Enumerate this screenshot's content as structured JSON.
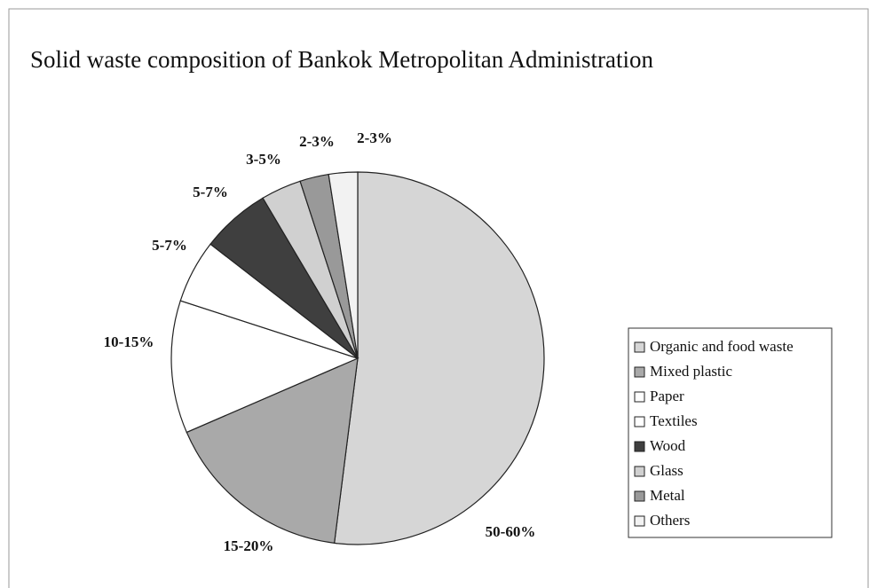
{
  "chart_data": {
    "type": "pie",
    "title": "Solid waste composition of Bankok Metropolitan Administration",
    "categories": [
      "Organic and food waste",
      "Mixed plastic",
      "Paper",
      "Textiles",
      "Wood",
      "Glass",
      "Metal",
      "Others"
    ],
    "values": [
      52,
      16.5,
      11.5,
      5.5,
      6,
      3.5,
      2.5,
      2.5
    ],
    "value_labels": [
      "50-60%",
      "15-20%",
      "10-15%",
      "5-7%",
      "5-7%",
      "3-5%",
      "2-3%",
      "2-3%"
    ],
    "colors": [
      "#d6d6d6",
      "#a9a9a9",
      "#ffffff",
      "#ffffff",
      "#3f3f3f",
      "#d0d0d0",
      "#999999",
      "#f2f2f2"
    ],
    "legend": "right"
  }
}
